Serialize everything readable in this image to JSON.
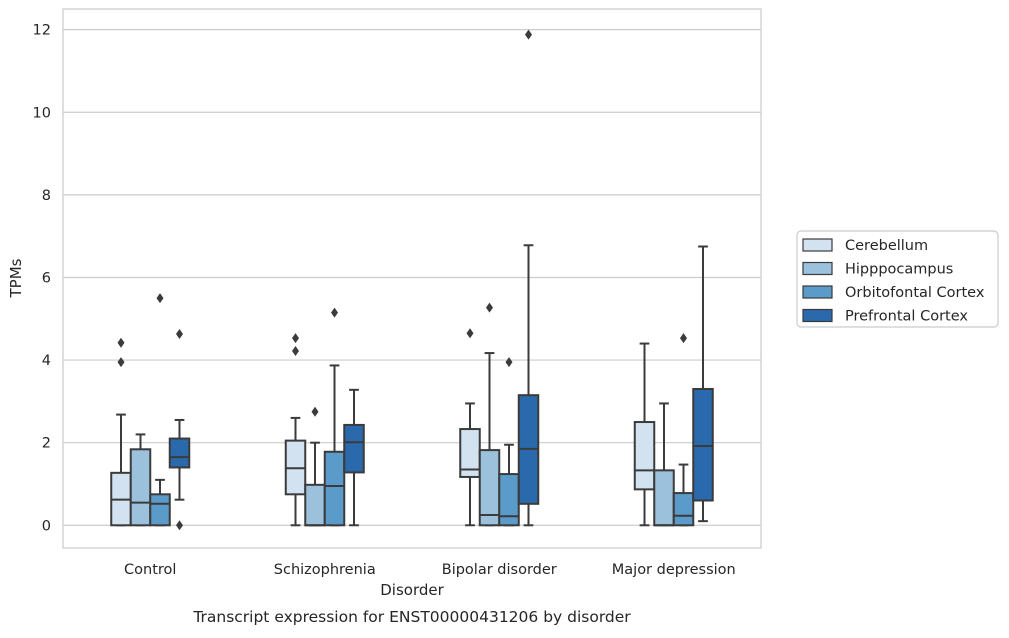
{
  "chart_data": {
    "type": "box",
    "title": "",
    "caption": "Transcript expression for ENST00000431206 by disorder",
    "xlabel": "Disorder",
    "ylabel": "TPMs",
    "ylim": [
      -0.55,
      12.5
    ],
    "yticks": [
      0,
      2,
      4,
      6,
      8,
      10,
      12
    ],
    "grid": "horizontal",
    "legend_position": "right-center",
    "categories": [
      "Control",
      "Schizophrenia",
      "Bipolar disorder",
      "Major depression"
    ],
    "series": [
      {
        "name": "Cerebellum",
        "color": "#d3e2f1",
        "boxes": [
          {
            "whisker_low": 0,
            "q1": 0,
            "median": 0.62,
            "q3": 1.27,
            "whisker_high": 2.68,
            "outliers": [
              3.95,
              4.42
            ]
          },
          {
            "whisker_low": 0,
            "q1": 0.75,
            "median": 1.38,
            "q3": 2.05,
            "whisker_high": 2.6,
            "outliers": [
              4.22,
              4.53
            ]
          },
          {
            "whisker_low": 0,
            "q1": 1.17,
            "median": 1.35,
            "q3": 2.33,
            "whisker_high": 2.95,
            "outliers": [
              4.65
            ]
          },
          {
            "whisker_low": 0,
            "q1": 0.87,
            "median": 1.33,
            "q3": 2.5,
            "whisker_high": 4.4,
            "outliers": []
          }
        ]
      },
      {
        "name": "Hipppocampus",
        "color": "#9bc1dd",
        "boxes": [
          {
            "whisker_low": 0,
            "q1": 0,
            "median": 0.55,
            "q3": 1.84,
            "whisker_high": 2.2,
            "outliers": []
          },
          {
            "whisker_low": 0,
            "q1": 0,
            "median": 0,
            "q3": 0.98,
            "whisker_high": 2.0,
            "outliers": [
              2.75
            ]
          },
          {
            "whisker_low": 0,
            "q1": 0,
            "median": 0.25,
            "q3": 1.82,
            "whisker_high": 4.17,
            "outliers": [
              5.27
            ]
          },
          {
            "whisker_low": 0,
            "q1": 0,
            "median": 0,
            "q3": 1.33,
            "whisker_high": 2.95,
            "outliers": []
          }
        ]
      },
      {
        "name": "Orbitofontal Cortex",
        "color": "#5a9bc9",
        "boxes": [
          {
            "whisker_low": 0,
            "q1": 0,
            "median": 0.52,
            "q3": 0.75,
            "whisker_high": 1.1,
            "outliers": [
              5.5
            ]
          },
          {
            "whisker_low": 0,
            "q1": 0,
            "median": 0.95,
            "q3": 1.78,
            "whisker_high": 3.87,
            "outliers": [
              5.15
            ]
          },
          {
            "whisker_low": 0,
            "q1": 0,
            "median": 0.22,
            "q3": 1.24,
            "whisker_high": 1.95,
            "outliers": [
              3.95
            ]
          },
          {
            "whisker_low": 0,
            "q1": 0,
            "median": 0.23,
            "q3": 0.78,
            "whisker_high": 1.47,
            "outliers": [
              4.53
            ]
          }
        ]
      },
      {
        "name": "Prefrontal Cortex",
        "color": "#2a6aac",
        "boxes": [
          {
            "whisker_low": 0.62,
            "q1": 1.4,
            "median": 1.65,
            "q3": 2.1,
            "whisker_high": 2.55,
            "outliers": [
              0,
              4.63
            ]
          },
          {
            "whisker_low": 0,
            "q1": 1.28,
            "median": 2.01,
            "q3": 2.43,
            "whisker_high": 3.28,
            "outliers": []
          },
          {
            "whisker_low": 0,
            "q1": 0.52,
            "median": 1.85,
            "q3": 3.15,
            "whisker_high": 6.78,
            "outliers": [
              11.88
            ]
          },
          {
            "whisker_low": 0.1,
            "q1": 0.6,
            "median": 1.92,
            "q3": 3.3,
            "whisker_high": 6.75,
            "outliers": []
          }
        ]
      }
    ]
  }
}
